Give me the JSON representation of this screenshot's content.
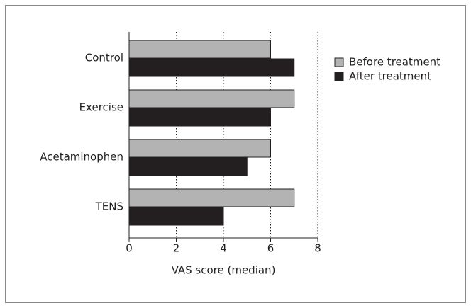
{
  "chart_data": {
    "type": "hbar",
    "categories": [
      "Control",
      "Exercise",
      "Acetaminophen",
      "TENS"
    ],
    "series": [
      {
        "name": "Before treatment",
        "color": "#b3b3b3",
        "values": [
          6,
          7,
          6,
          7
        ]
      },
      {
        "name": "After treatment",
        "color": "#231f20",
        "values": [
          7,
          6,
          5,
          4
        ]
      }
    ],
    "xlabel": "VAS score (median)",
    "xlim": [
      0,
      8
    ],
    "xticks": [
      0,
      2,
      4,
      6,
      8
    ],
    "grid": true,
    "legend": "upper right"
  }
}
